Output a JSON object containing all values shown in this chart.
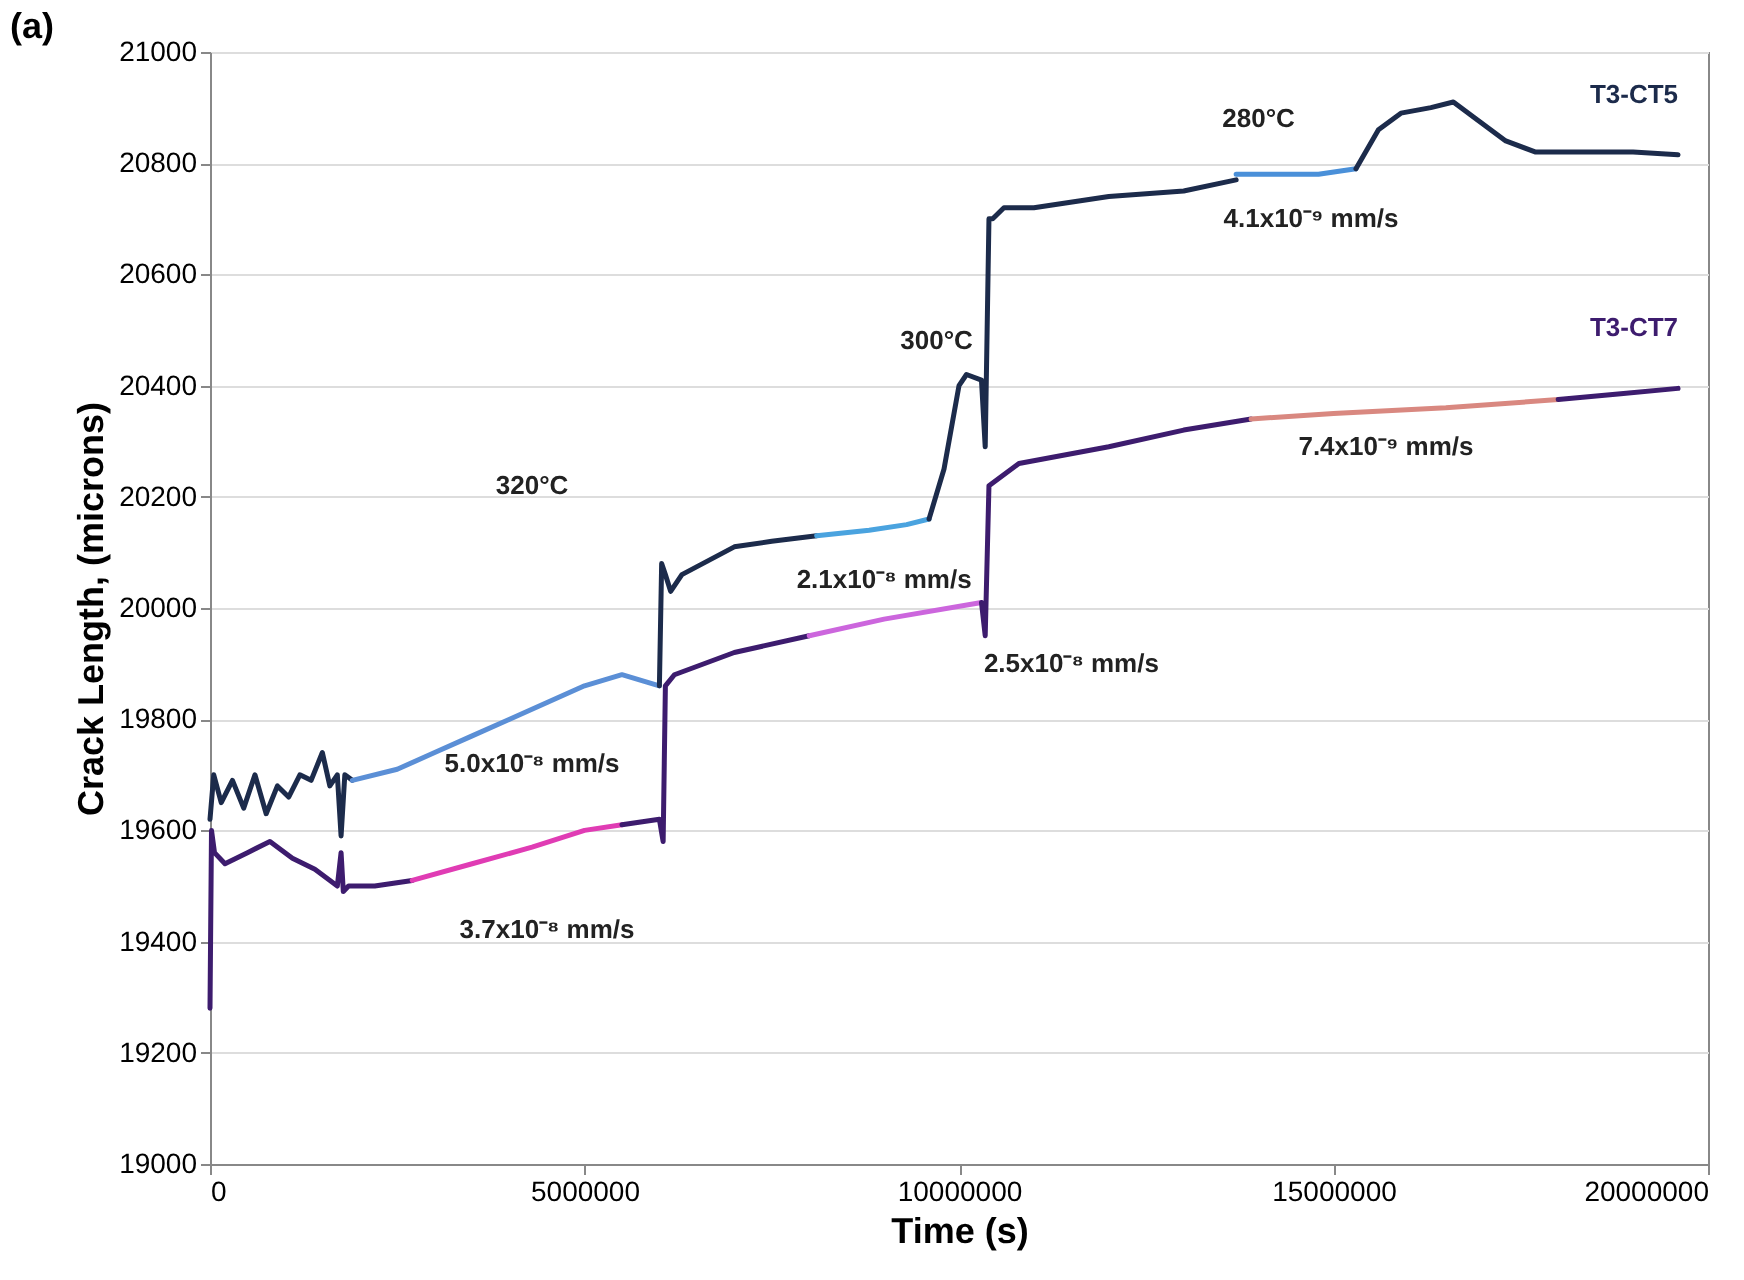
{
  "chart_data": {
    "type": "line",
    "title": "(a)",
    "xlabel": "Time (s)",
    "ylabel": "Crack Length, (microns)",
    "xlim": [
      0,
      20000000
    ],
    "xticks": [
      0,
      5000000,
      10000000,
      15000000,
      20000000
    ],
    "ylim": [
      19000,
      21000
    ],
    "yticks": [
      19000,
      19200,
      19400,
      19600,
      19800,
      20000,
      20200,
      20400,
      20600,
      20800,
      21000
    ],
    "grid": "y",
    "legend": false,
    "marker": "none",
    "line_style": "solid",
    "series": [
      {
        "color": "#1c2b4b",
        "x": [
          0,
          50000,
          150000,
          300000,
          450000,
          600000,
          750000,
          900000,
          1050000,
          1200000,
          1350000,
          1500000,
          1600000,
          1700000,
          1750000,
          1800000,
          1900000
        ],
        "values": [
          19620,
          19700,
          19650,
          19690,
          19640,
          19700,
          19630,
          19680,
          19660,
          19700,
          19690,
          19740,
          19680,
          19700,
          19590,
          19700,
          19690
        ]
      },
      {
        "color": "#5b8fd6",
        "x": [
          1900000,
          2500000,
          3000000,
          3500000,
          4000000,
          4500000,
          5000000,
          5500000,
          6000000
        ],
        "values": [
          19690,
          19710,
          19740,
          19770,
          19800,
          19830,
          19860,
          19880,
          19860
        ]
      },
      {
        "color": "#1c2b4b",
        "x": [
          6000000,
          6030000,
          6080000,
          6150000,
          6300000,
          7000000,
          7500000,
          8100000
        ],
        "values": [
          19860,
          20080,
          20060,
          20030,
          20060,
          20110,
          20120,
          20130
        ]
      },
      {
        "color": "#4aa3df",
        "x": [
          8100000,
          8800000,
          9300000,
          9600000
        ],
        "values": [
          20130,
          20140,
          20150,
          20160
        ]
      },
      {
        "color": "#1c2b4b",
        "x": [
          9600000,
          9800000,
          10000000,
          10100000,
          10300000,
          10350000,
          10400000,
          10450000,
          10600000,
          11000000,
          12000000,
          13000000,
          13700000
        ],
        "values": [
          20160,
          20250,
          20400,
          20420,
          20410,
          20290,
          20700,
          20700,
          20720,
          20720,
          20740,
          20750,
          20770
        ]
      },
      {
        "color": "#4a90d9",
        "x": [
          13700000,
          14200000,
          14800000,
          15300000
        ],
        "values": [
          20780,
          20780,
          20780,
          20790
        ]
      },
      {
        "name": "T3-CT5",
        "color": "#1c2b4b",
        "x": [
          15300000,
          15600000,
          15900000,
          16300000,
          16600000,
          16900000,
          17300000,
          17700000,
          18200000,
          19000000,
          19600000
        ],
        "values": [
          20790,
          20860,
          20890,
          20900,
          20910,
          20880,
          20840,
          20820,
          20820,
          20820,
          20815
        ]
      },
      {
        "color": "#3d1c6e",
        "x": [
          0,
          20000,
          60000,
          200000,
          500000,
          800000,
          1100000,
          1400000,
          1700000,
          1750000,
          1780000,
          1850000,
          2200000,
          2700000
        ],
        "values": [
          19280,
          19600,
          19560,
          19540,
          19560,
          19580,
          19550,
          19530,
          19500,
          19560,
          19490,
          19500,
          19500,
          19510
        ]
      },
      {
        "color": "#e03cb4",
        "x": [
          2700000,
          3500000,
          4300000,
          5000000,
          5500000
        ],
        "values": [
          19510,
          19540,
          19570,
          19600,
          19610
        ]
      },
      {
        "color": "#3d1c6e",
        "x": [
          5500000,
          6000000,
          6050000,
          6080000,
          6200000,
          7000000,
          8000000
        ],
        "values": [
          19610,
          19620,
          19580,
          19860,
          19880,
          19920,
          19950
        ]
      },
      {
        "color": "#cc66dd",
        "x": [
          8000000,
          9000000,
          10300000
        ],
        "values": [
          19950,
          19980,
          20010
        ]
      },
      {
        "color": "#3d1c6e",
        "x": [
          10300000,
          10350000,
          10400000,
          10800000,
          12000000,
          13000000,
          13900000
        ],
        "values": [
          20010,
          19950,
          20220,
          20260,
          20290,
          20320,
          20340
        ]
      },
      {
        "color": "#d98880",
        "x": [
          13900000,
          15000000,
          16500000,
          18000000
        ],
        "values": [
          20340,
          20350,
          20360,
          20375
        ]
      },
      {
        "name": "T3-CT7",
        "color": "#3d1c6e",
        "x": [
          18000000,
          18800000,
          19600000
        ],
        "values": [
          20375,
          20385,
          20395
        ]
      }
    ],
    "annotations": [
      "320°C",
      "300°C",
      "280°C",
      "5.0x10⁻⁸ mm/s",
      "3.7x10⁻⁸ mm/s",
      "2.1x10⁻⁸ mm/s",
      "2.5x10⁻⁸ mm/s",
      "4.1x10⁻⁹ mm/s",
      "7.4x10⁻⁹ mm/s"
    ]
  }
}
